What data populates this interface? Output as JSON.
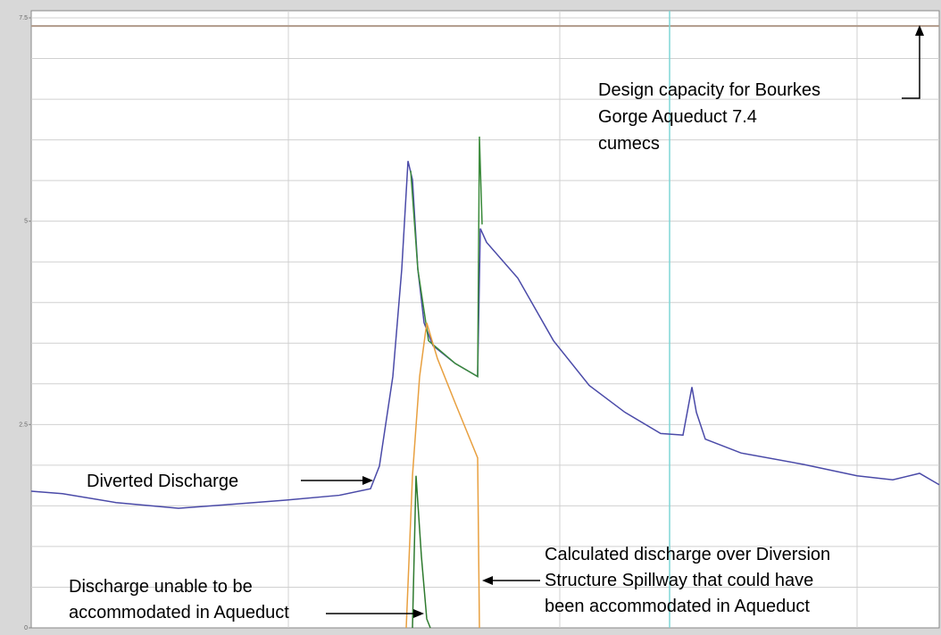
{
  "chart_data": {
    "type": "line",
    "xlim": [
      0,
      1017
    ],
    "ylim": [
      0,
      7.5
    ],
    "yticks": [
      0,
      2.5,
      5,
      7.5
    ],
    "grid_yticks": [
      0.5,
      1,
      1.5,
      2,
      2.5,
      3,
      3.5,
      4,
      4.5,
      5,
      5.5,
      6,
      6.5,
      7,
      7.5
    ],
    "grid_xticks": [
      288,
      592,
      925
    ],
    "grid": true,
    "capacity": {
      "value": 7.4,
      "color": "#b09a8a"
    },
    "marker_x": {
      "value": 715,
      "color": "#7fd6d6"
    },
    "series": [
      {
        "color": "#4a4aa8",
        "x": [
          0,
          35,
          95,
          165,
          225,
          285,
          345,
          380,
          390,
          405,
          415,
          422,
          427,
          433,
          440,
          450,
          475,
          500,
          503,
          510,
          545,
          585,
          625,
          665,
          705,
          730,
          740,
          745,
          755,
          795,
          865,
          925,
          965,
          995,
          1017
        ],
        "values": [
          1.68,
          1.65,
          1.54,
          1.47,
          1.52,
          1.57,
          1.63,
          1.71,
          1.99,
          3.09,
          4.41,
          5.74,
          5.51,
          4.41,
          3.75,
          3.47,
          3.25,
          3.09,
          4.91,
          4.74,
          4.3,
          3.53,
          2.98,
          2.65,
          2.39,
          2.37,
          2.96,
          2.65,
          2.32,
          2.15,
          2.01,
          1.87,
          1.82,
          1.9,
          1.76
        ]
      },
      {
        "color": "#3a8a3a",
        "x": [
          425,
          433,
          445,
          475,
          500,
          502,
          505
        ],
        "values": [
          5.62,
          4.41,
          3.53,
          3.25,
          3.09,
          6.04,
          4.96
        ]
      },
      {
        "color": "#e8a040",
        "x": [
          420,
          427,
          435,
          443,
          455,
          475,
          500,
          502
        ],
        "values": [
          0,
          1.87,
          3.09,
          3.75,
          3.31,
          2.76,
          2.09,
          0
        ]
      },
      {
        "color": "#2e7a2e",
        "x": [
          427,
          431,
          437,
          443,
          447
        ],
        "values": [
          0,
          1.87,
          0.88,
          0.11,
          0
        ]
      }
    ],
    "annotations": {
      "capacity": [
        "Design capacity for Bourkes",
        "Gorge Aqueduct 7.4",
        "cumecs"
      ],
      "diverted": [
        "Diverted Discharge"
      ],
      "unable": [
        "Discharge unable to be",
        "accommodated in Aqueduct"
      ],
      "spillway": [
        "Calculated discharge over Diversion",
        "Structure Spillway that could have",
        "been accommodated in Aqueduct"
      ]
    }
  }
}
